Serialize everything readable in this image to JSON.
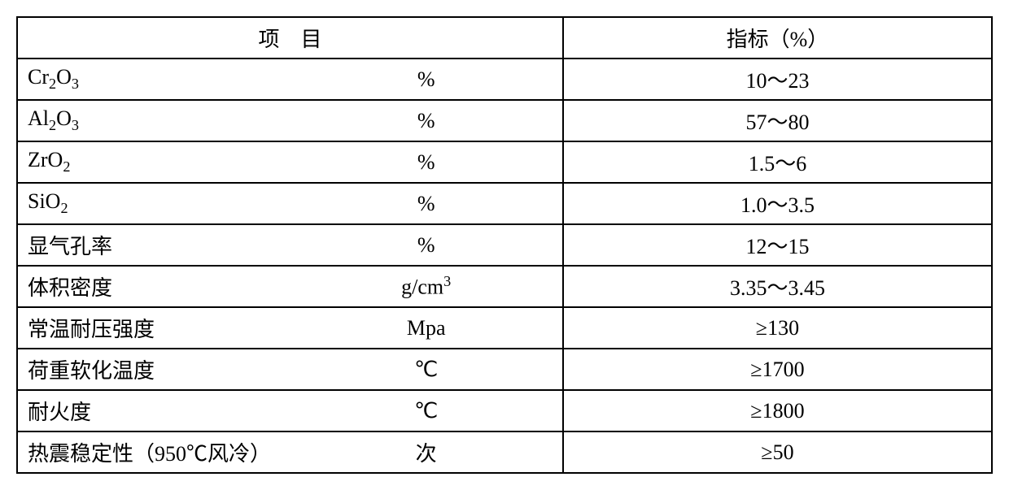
{
  "table": {
    "type": "table",
    "background_color": "#ffffff",
    "border_color": "#000000",
    "border_width": 2,
    "font_size": 26,
    "font_family": "SimSun",
    "columns": [
      {
        "key": "item_name",
        "width_pct": 36,
        "align": "left"
      },
      {
        "key": "item_unit",
        "width_pct": 20,
        "align": "center"
      },
      {
        "key": "value",
        "width_pct": 44,
        "align": "center"
      }
    ],
    "header": {
      "item_label": "项　目",
      "value_label": "指标（%）"
    },
    "rows": [
      {
        "name_html": "Cr<sub>2</sub>O<sub>3</sub>",
        "unit": "%",
        "value": "10～23"
      },
      {
        "name_html": "Al<sub>2</sub>O<sub>3</sub>",
        "unit": "%",
        "value": "57～80"
      },
      {
        "name_html": "ZrO<sub>2</sub>",
        "unit": "%",
        "value": "1.5～6"
      },
      {
        "name_html": "SiO<sub>2</sub>",
        "unit": "%",
        "value": "1.0～3.5"
      },
      {
        "name_html": "显气孔率",
        "unit": "%",
        "value": "12～15"
      },
      {
        "name_html": "体积密度",
        "unit": "g/cm<sup>3</sup>",
        "value": "3.35～3.45"
      },
      {
        "name_html": "常温耐压强度",
        "unit": "Mpa",
        "value": "≥130"
      },
      {
        "name_html": "荷重软化温度",
        "unit": "℃",
        "value": "≥1700"
      },
      {
        "name_html": "耐火度",
        "unit": "℃",
        "value": "≥1800"
      },
      {
        "name_html": "热震稳定性（950℃风冷）",
        "unit": "次",
        "value": "≥50"
      }
    ]
  }
}
